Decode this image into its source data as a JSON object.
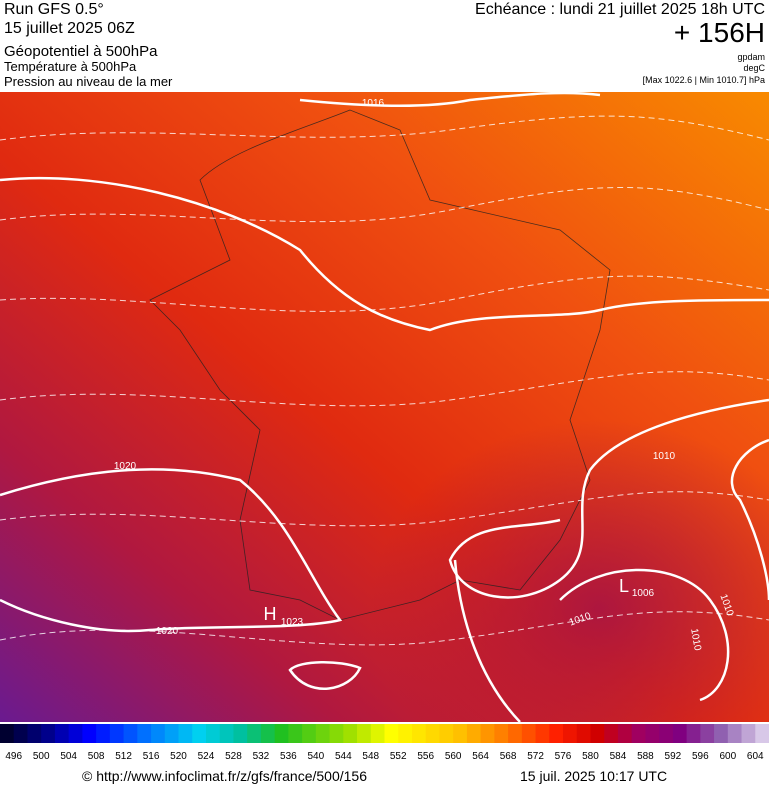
{
  "header": {
    "run": "Run GFS 0.5°",
    "date": "15 juillet 2025 06Z",
    "field1": "Géopotentiel à 500hPa",
    "field2": "Température à 500hPa",
    "field3": "Pression au niveau de la mer",
    "echeance": "Echéance : lundi 21 juillet 2025 18h UTC",
    "lead": "+ 156H",
    "unit1": "gpdam",
    "unit2": "degC",
    "range": "[Max 1022.6 | Min 1010.7] hPa"
  },
  "map": {
    "labels": [
      "1016",
      "1020",
      "1020",
      "1010",
      "1010",
      "1010",
      "1010",
      "H",
      "1023",
      "L",
      "1006"
    ]
  },
  "colorbar": {
    "ticks": [
      496,
      500,
      504,
      508,
      512,
      516,
      520,
      524,
      528,
      532,
      536,
      540,
      544,
      548,
      552,
      556,
      560,
      564,
      568,
      572,
      576,
      580,
      584,
      588,
      592,
      596,
      600,
      604
    ]
  },
  "footer": {
    "url": "© http://www.infoclimat.fr/z/gfs/france/500/156",
    "timestamp": "15 juil. 2025 10:17 UTC"
  }
}
